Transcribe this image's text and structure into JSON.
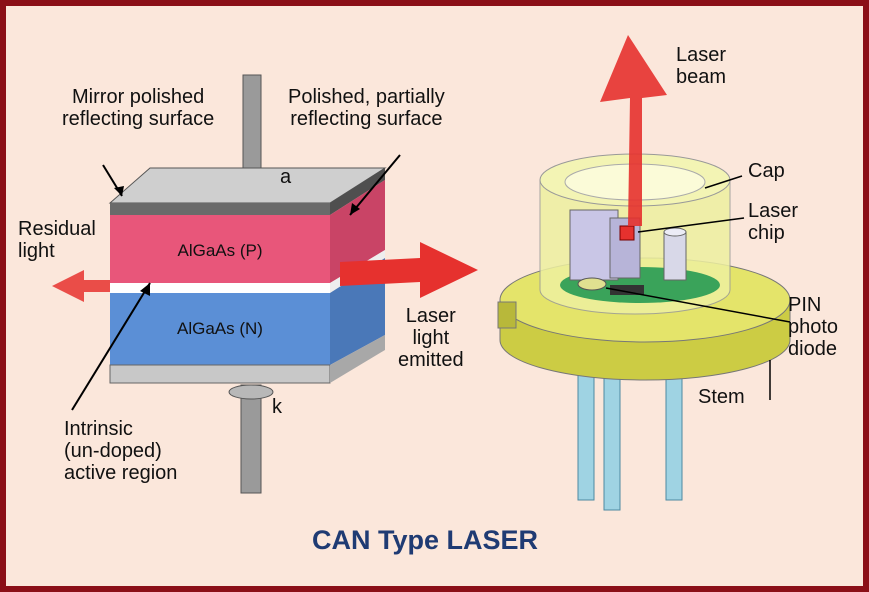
{
  "title": "CAN Type LASER",
  "left_diagram": {
    "labels": {
      "mirror": "Mirror polished\nreflecting surface",
      "partial": "Polished, partially\nreflecting surface",
      "residual": "Residual\nlight",
      "laser_light": "Laser\nlight\nemitted",
      "intrinsic": "Intrinsic\n(un-doped)\nactive region"
    },
    "layers": {
      "p": "AlGaAs (P)",
      "n": "AlGaAs (N)"
    },
    "terminals": {
      "anode": "a",
      "cathode": "k"
    }
  },
  "right_diagram": {
    "labels": {
      "beam": "Laser\nbeam",
      "cap": "Cap",
      "chip": "Laser\nchip",
      "pin": "PIN\nphoto\ndiode",
      "stem": "Stem"
    }
  },
  "colors": {
    "frame": "#8b0f17",
    "background": "#fbe7db",
    "p_layer": "#e8567a",
    "n_layer": "#5b8fd6",
    "arrow": "#e6312e",
    "can": "#e4e46a",
    "title": "#1f3b73"
  }
}
